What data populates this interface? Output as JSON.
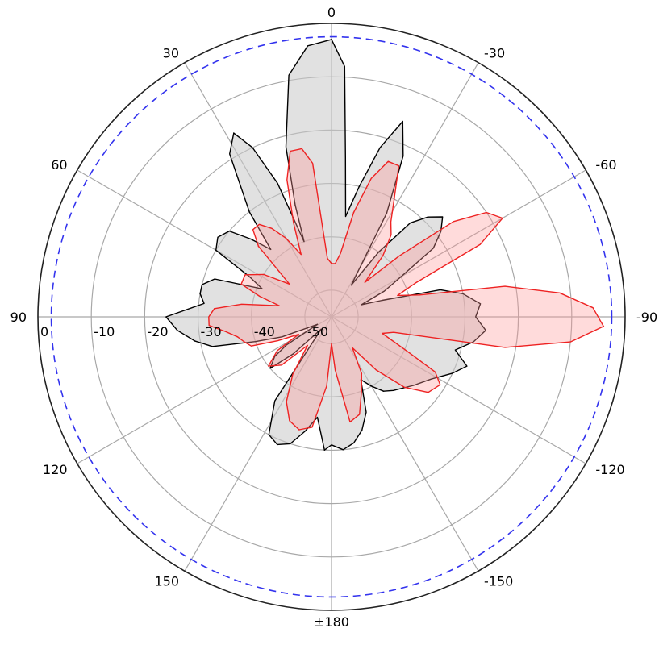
{
  "chart_data": {
    "type": "polar",
    "title": "",
    "angle_labels": [
      {
        "angle": 0,
        "label": "0"
      },
      {
        "angle": -30,
        "label": "-30"
      },
      {
        "angle": -60,
        "label": "-60"
      },
      {
        "angle": -90,
        "label": "-90"
      },
      {
        "angle": -120,
        "label": "-120"
      },
      {
        "angle": -150,
        "label": "-150"
      },
      {
        "angle": 180,
        "label": "±180"
      },
      {
        "angle": 150,
        "label": "150"
      },
      {
        "angle": 120,
        "label": "120"
      },
      {
        "angle": 90,
        "label": "90"
      },
      {
        "angle": 60,
        "label": "60"
      },
      {
        "angle": 30,
        "label": "30"
      }
    ],
    "angle_direction": "clockwise-positive-to-left",
    "radial_ticks": [
      0,
      -10,
      -20,
      -30,
      -40,
      -50
    ],
    "radial_range": [
      -55,
      0
    ],
    "reference_circle": {
      "value": -2.5,
      "style": "dashed",
      "color": "#3333ee"
    },
    "grid": true,
    "series": [
      {
        "color": "#000000",
        "fill": "#c8c8c8",
        "fill_opacity": 0.55,
        "points": [
          [
            0,
            -3
          ],
          [
            5,
            -4
          ],
          [
            10,
            -9
          ],
          [
            15,
            -22
          ],
          [
            18,
            -33
          ],
          [
            20,
            -40
          ],
          [
            22,
            -28
          ],
          [
            25,
            -20
          ],
          [
            28,
            -16
          ],
          [
            32,
            -19
          ],
          [
            38,
            -30
          ],
          [
            42,
            -38
          ],
          [
            46,
            -34
          ],
          [
            50,
            -30
          ],
          [
            55,
            -29
          ],
          [
            60,
            -30
          ],
          [
            64,
            -38
          ],
          [
            68,
            -41
          ],
          [
            72,
            -32
          ],
          [
            76,
            -30
          ],
          [
            80,
            -30
          ],
          [
            84,
            -31
          ],
          [
            90,
            -24
          ],
          [
            95,
            -26
          ],
          [
            100,
            -29
          ],
          [
            104,
            -32
          ],
          [
            108,
            -40
          ],
          [
            112,
            -45
          ],
          [
            118,
            -52
          ],
          [
            122,
            -45
          ],
          [
            125,
            -42
          ],
          [
            130,
            -40
          ],
          [
            134,
            -45
          ],
          [
            140,
            -52
          ],
          [
            146,
            -36
          ],
          [
            152,
            -30
          ],
          [
            157,
            -29
          ],
          [
            162,
            -30
          ],
          [
            167,
            -33
          ],
          [
            172,
            -36
          ],
          [
            177,
            -30
          ],
          [
            180,
            -31
          ],
          [
            -175,
            -30
          ],
          [
            -170,
            -31
          ],
          [
            -165,
            -33
          ],
          [
            -160,
            -36
          ],
          [
            -155,
            -42
          ],
          [
            -150,
            -40
          ],
          [
            -145,
            -38
          ],
          [
            -140,
            -37
          ],
          [
            -130,
            -35
          ],
          [
            -122,
            -33
          ],
          [
            -115,
            -30
          ],
          [
            -110,
            -28
          ],
          [
            -105,
            -31
          ],
          [
            -100,
            -28
          ],
          [
            -95,
            -26
          ],
          [
            -90,
            -28
          ],
          [
            -85,
            -27
          ],
          [
            -80,
            -30
          ],
          [
            -76,
            -34
          ],
          [
            -72,
            -45
          ],
          [
            -68,
            -49
          ],
          [
            -64,
            -44
          ],
          [
            -60,
            -40
          ],
          [
            -56,
            -32
          ],
          [
            -52,
            -29
          ],
          [
            -48,
            -27
          ],
          [
            -44,
            -29
          ],
          [
            -40,
            -32
          ],
          [
            -36,
            -40
          ],
          [
            -32,
            -48
          ],
          [
            -28,
            -33
          ],
          [
            -24,
            -22
          ],
          [
            -20,
            -16
          ],
          [
            -16,
            -22
          ],
          [
            -12,
            -30
          ],
          [
            -8,
            -36
          ],
          [
            -5,
            -25
          ],
          [
            -3,
            -8
          ],
          [
            0,
            -3
          ]
        ]
      },
      {
        "color": "#ee2222",
        "fill": "#ff9999",
        "fill_opacity": 0.35,
        "points": [
          [
            0,
            -45
          ],
          [
            4,
            -44
          ],
          [
            7,
            -26
          ],
          [
            10,
            -23
          ],
          [
            14,
            -23
          ],
          [
            18,
            -28
          ],
          [
            22,
            -36
          ],
          [
            26,
            -42
          ],
          [
            30,
            -38
          ],
          [
            34,
            -35
          ],
          [
            38,
            -33
          ],
          [
            42,
            -33
          ],
          [
            46,
            -36
          ],
          [
            52,
            -45
          ],
          [
            58,
            -40
          ],
          [
            64,
            -37
          ],
          [
            70,
            -37
          ],
          [
            74,
            -41
          ],
          [
            78,
            -45
          ],
          [
            82,
            -38
          ],
          [
            86,
            -33
          ],
          [
            90,
            -32
          ],
          [
            94,
            -32
          ],
          [
            98,
            -35
          ],
          [
            102,
            -37
          ],
          [
            106,
            -38
          ],
          [
            110,
            -39
          ],
          [
            114,
            -44
          ],
          [
            118,
            -48
          ],
          [
            122,
            -43
          ],
          [
            128,
            -40
          ],
          [
            134,
            -42
          ],
          [
            140,
            -48
          ],
          [
            146,
            -42
          ],
          [
            152,
            -37
          ],
          [
            158,
            -34
          ],
          [
            164,
            -33
          ],
          [
            170,
            -34
          ],
          [
            176,
            -42
          ],
          [
            180,
            -50
          ],
          [
            -176,
            -45
          ],
          [
            -170,
            -35
          ],
          [
            -164,
            -36
          ],
          [
            -158,
            -40
          ],
          [
            -152,
            -43
          ],
          [
            -146,
            -48
          ],
          [
            -140,
            -42
          ],
          [
            -134,
            -36
          ],
          [
            -128,
            -32
          ],
          [
            -122,
            -31
          ],
          [
            -118,
            -33
          ],
          [
            -114,
            -40
          ],
          [
            -108,
            -45
          ],
          [
            -104,
            -43
          ],
          [
            -100,
            -22
          ],
          [
            -96,
            -10
          ],
          [
            -92,
            -4
          ],
          [
            -88,
            -6
          ],
          [
            -84,
            -12
          ],
          [
            -80,
            -22
          ],
          [
            -76,
            -38
          ],
          [
            -72,
            -42
          ],
          [
            -68,
            -38
          ],
          [
            -64,
            -24
          ],
          [
            -60,
            -18
          ],
          [
            -56,
            -20
          ],
          [
            -52,
            -26
          ],
          [
            -48,
            -38
          ],
          [
            -44,
            -46
          ],
          [
            -40,
            -40
          ],
          [
            -36,
            -36
          ],
          [
            -32,
            -34
          ],
          [
            -28,
            -30
          ],
          [
            -24,
            -24
          ],
          [
            -20,
            -24
          ],
          [
            -16,
            -28
          ],
          [
            -12,
            -35
          ],
          [
            -8,
            -43
          ],
          [
            -4,
            -45
          ],
          [
            0,
            -45
          ]
        ]
      }
    ]
  }
}
